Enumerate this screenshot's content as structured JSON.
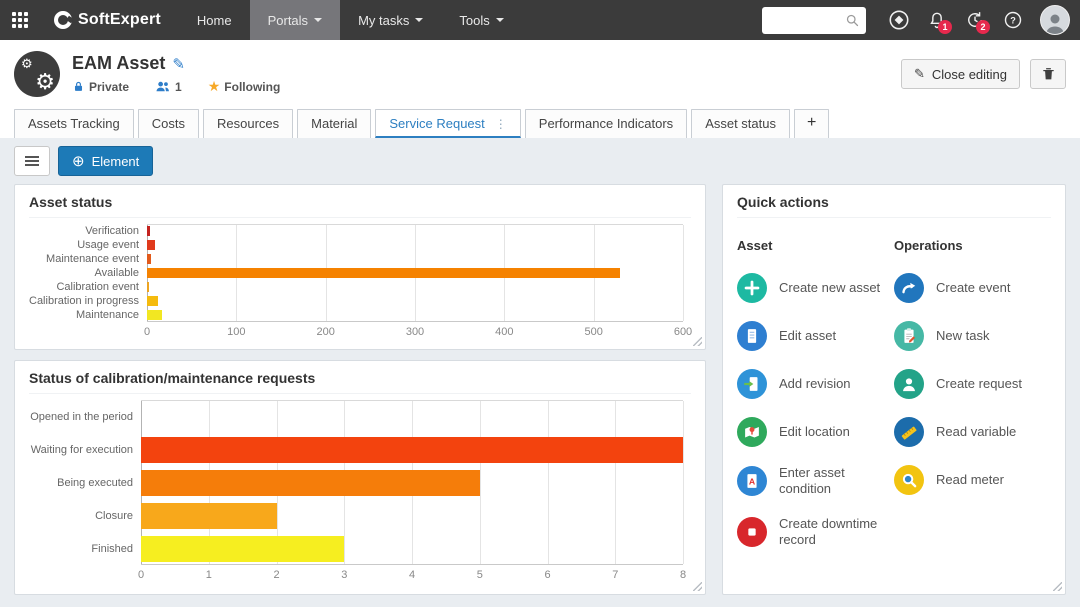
{
  "navbar": {
    "brand": "SoftExpert",
    "menu": [
      {
        "label": "Home",
        "active": false,
        "caret": false
      },
      {
        "label": "Portals",
        "active": true,
        "caret": true
      },
      {
        "label": "My tasks",
        "active": false,
        "caret": true
      },
      {
        "label": "Tools",
        "active": false,
        "caret": true
      }
    ],
    "search": {
      "placeholder": "",
      "value": ""
    },
    "notifications": {
      "bell_count": "1",
      "history_count": "2"
    }
  },
  "header": {
    "title": "EAM Asset",
    "privacy_label": "Private",
    "members_count": "1",
    "following_label": "Following",
    "close_editing_label": "Close editing"
  },
  "tabs": {
    "items": [
      {
        "label": "Assets Tracking",
        "active": false,
        "menu": false
      },
      {
        "label": "Costs",
        "active": false,
        "menu": false
      },
      {
        "label": "Resources",
        "active": false,
        "menu": false
      },
      {
        "label": "Material",
        "active": false,
        "menu": false
      },
      {
        "label": "Service Request",
        "active": true,
        "menu": true
      },
      {
        "label": "Performance Indicators",
        "active": false,
        "menu": false
      },
      {
        "label": "Asset status",
        "active": false,
        "menu": false
      }
    ],
    "add_label": "+"
  },
  "toolbar": {
    "element_label": "Element"
  },
  "chart_data": [
    {
      "type": "bar",
      "orientation": "horizontal",
      "title": "Asset status",
      "categories": [
        "Verification",
        "Usage event",
        "Maintenance event",
        "Available",
        "Calibration event",
        "Calibration in progress",
        "Maintenance"
      ],
      "values": [
        3,
        9,
        5,
        530,
        2,
        12,
        17
      ],
      "colors": [
        "#c4231f",
        "#e03a1c",
        "#e25a1b",
        "#f58200",
        "#eda421",
        "#f5bb0e",
        "#f2e722"
      ],
      "xlabel": "",
      "ylabel": "",
      "xlim": [
        0,
        600
      ],
      "xticks": [
        0,
        100,
        200,
        300,
        400,
        500,
        600
      ],
      "grid": true,
      "legend": false
    },
    {
      "type": "bar",
      "orientation": "horizontal",
      "title": "Status of calibration/maintenance requests",
      "categories": [
        "Opened in the period",
        "Waiting for execution",
        "Being executed",
        "Closure",
        "Finished"
      ],
      "values": [
        0,
        8,
        5,
        2,
        3
      ],
      "colors": [
        "#f3430e",
        "#f3430e",
        "#f57d0a",
        "#f8a81b",
        "#f6ee20"
      ],
      "xlabel": "",
      "ylabel": "",
      "xlim": [
        0,
        8
      ],
      "xticks": [
        0,
        1,
        2,
        3,
        4,
        5,
        6,
        7,
        8
      ],
      "grid": true,
      "legend": false
    }
  ],
  "quick_actions": {
    "title": "Quick actions",
    "columns": [
      {
        "title": "Asset",
        "items": [
          {
            "label": "Create new asset",
            "icon": "plus-icon",
            "color": "#1db9a2"
          },
          {
            "label": "Edit asset",
            "icon": "document-icon",
            "color": "#2e7fd1"
          },
          {
            "label": "Add revision",
            "icon": "document-arrow-icon",
            "color": "#2e93d8"
          },
          {
            "label": "Edit location",
            "icon": "map-pin-icon",
            "color": "#2fa95c"
          },
          {
            "label": "Enter asset condition",
            "icon": "document-a-icon",
            "color": "#2e86d4"
          },
          {
            "label": "Create downtime record",
            "icon": "stop-icon",
            "color": "#d8272c"
          }
        ]
      },
      {
        "title": "Operations",
        "items": [
          {
            "label": "Create event",
            "icon": "curved-arrow-icon",
            "color": "#2176bd"
          },
          {
            "label": "New task",
            "icon": "clipboard-icon",
            "color": "#46b8a5"
          },
          {
            "label": "Create request",
            "icon": "person-icon",
            "color": "#23a388"
          },
          {
            "label": "Read variable",
            "icon": "ruler-icon",
            "color": "#1c6cab"
          },
          {
            "label": "Read meter",
            "icon": "magnifier-gauge-icon",
            "color": "#f2c411"
          }
        ]
      }
    ]
  }
}
